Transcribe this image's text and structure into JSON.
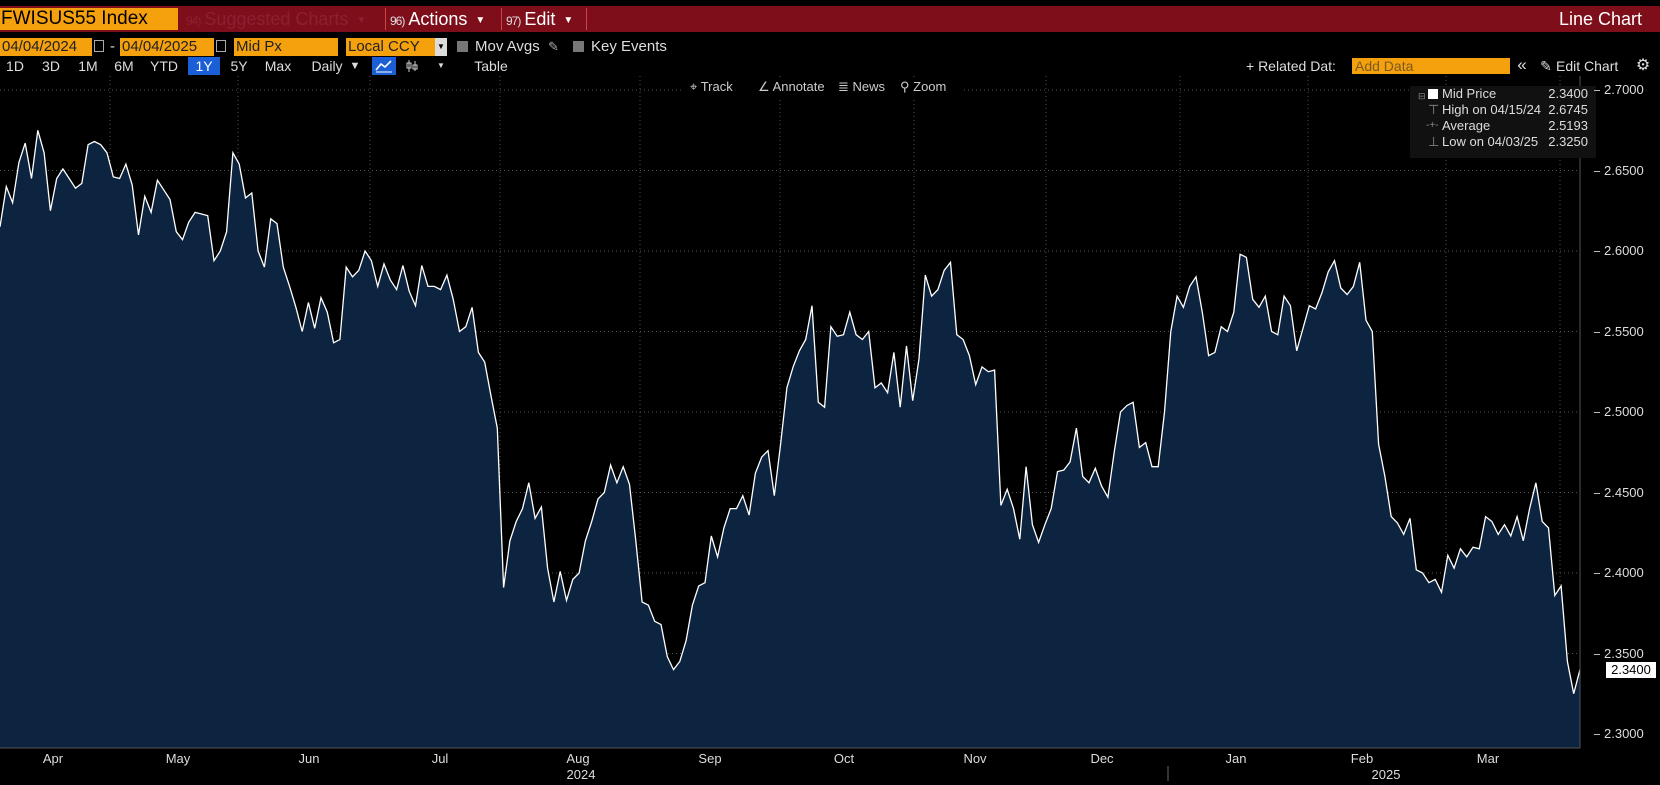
{
  "header": {
    "ticker": "FWISUS55 Index",
    "menus": [
      {
        "num": "94)",
        "label": "Suggested Charts"
      },
      {
        "num": "96)",
        "label": "Actions"
      },
      {
        "num": "97)",
        "label": "Edit"
      }
    ],
    "chart_kind": "Line Chart"
  },
  "controls": {
    "start_date": "04/04/2024",
    "date_sep": "-",
    "end_date": "04/04/2025",
    "field": "Mid Px",
    "currency": "Local CCY",
    "mov_avgs": "Mov Avgs",
    "key_events": "Key Events"
  },
  "toolbar": {
    "ranges": [
      "1D",
      "3D",
      "1M",
      "6M",
      "YTD",
      "1Y",
      "5Y",
      "Max"
    ],
    "active_range": "1Y",
    "frequency": "Daily",
    "table": "Table",
    "related_data": "+ Related Dat:",
    "add_data_placeholder": "Add Data",
    "edit_chart": "Edit Chart",
    "collapse": "«"
  },
  "chart_tools": [
    "Track",
    "Annotate",
    "News",
    "Zoom"
  ],
  "legend": [
    {
      "label": "Mid Price",
      "value": "2.3400"
    },
    {
      "label": "High on 04/15/24",
      "value": "2.6745"
    },
    {
      "label": "Average",
      "value": "2.5193"
    },
    {
      "label": "Low on 04/03/25",
      "value": "2.3250"
    }
  ],
  "last_value_label": "2.3400",
  "colors": {
    "line": "#ffffff",
    "fill": "#0d2440",
    "accent": "#f5a00d",
    "title_bar": "#7e0e1a"
  },
  "chart_data": {
    "type": "area",
    "x_months": [
      "Apr",
      "May",
      "Jun",
      "Jul",
      "Aug",
      "Sep",
      "Oct",
      "Nov",
      "Dec",
      "Jan",
      "Feb",
      "Mar"
    ],
    "x_years": [
      "2024",
      "2025"
    ],
    "ylim": [
      2.29,
      2.705
    ],
    "yticks": [
      "2.3000",
      "2.3500",
      "2.4000",
      "2.4500",
      "2.5000",
      "2.5500",
      "2.6000",
      "2.6500",
      "2.7000"
    ],
    "grid": true,
    "legend_position": "top-right",
    "series": [
      {
        "name": "Mid Price",
        "start": "2024-04-04",
        "end": "2025-04-04",
        "values": [
          2.615,
          2.64,
          2.63,
          2.655,
          2.667,
          2.645,
          2.675,
          2.661,
          2.625,
          2.645,
          2.651,
          2.645,
          2.639,
          2.642,
          2.666,
          2.668,
          2.666,
          2.661,
          2.646,
          2.645,
          2.654,
          2.641,
          2.61,
          2.634,
          2.624,
          2.644,
          2.638,
          2.632,
          2.612,
          2.607,
          2.618,
          2.624,
          2.623,
          2.622,
          2.594,
          2.6,
          2.612,
          2.661,
          2.654,
          2.633,
          2.636,
          2.6,
          2.59,
          2.62,
          2.617,
          2.59,
          2.578,
          2.565,
          2.55,
          2.568,
          2.552,
          2.571,
          2.562,
          2.543,
          2.545,
          2.59,
          2.584,
          2.588,
          2.6,
          2.594,
          2.578,
          2.592,
          2.582,
          2.576,
          2.591,
          2.575,
          2.566,
          2.591,
          2.578,
          2.578,
          2.576,
          2.585,
          2.57,
          2.55,
          2.553,
          2.565,
          2.537,
          2.531,
          2.51,
          2.49,
          2.391,
          2.42,
          2.432,
          2.44,
          2.456,
          2.434,
          2.441,
          2.403,
          2.382,
          2.401,
          2.383,
          2.396,
          2.4,
          2.42,
          2.432,
          2.446,
          2.45,
          2.467,
          2.456,
          2.466,
          2.455,
          2.42,
          2.382,
          2.38,
          2.37,
          2.368,
          2.348,
          2.34,
          2.345,
          2.358,
          2.38,
          2.392,
          2.394,
          2.423,
          2.41,
          2.428,
          2.44,
          2.44,
          2.448,
          2.436,
          2.462,
          2.472,
          2.476,
          2.448,
          2.48,
          2.515,
          2.528,
          2.538,
          2.545,
          2.566,
          2.506,
          2.503,
          2.553,
          2.547,
          2.548,
          2.562,
          2.548,
          2.545,
          2.55,
          2.515,
          2.518,
          2.512,
          2.537,
          2.503,
          2.541,
          2.507,
          2.533,
          2.585,
          2.572,
          2.576,
          2.588,
          2.593,
          2.548,
          2.545,
          2.535,
          2.517,
          2.528,
          2.525,
          2.526,
          2.442,
          2.452,
          2.44,
          2.421,
          2.466,
          2.43,
          2.419,
          2.43,
          2.44,
          2.463,
          2.464,
          2.469,
          2.49,
          2.46,
          2.456,
          2.465,
          2.454,
          2.447,
          2.475,
          2.5,
          2.504,
          2.506,
          2.478,
          2.481,
          2.466,
          2.466,
          2.5,
          2.55,
          2.572,
          2.565,
          2.578,
          2.584,
          2.562,
          2.535,
          2.537,
          2.553,
          2.55,
          2.562,
          2.598,
          2.596,
          2.57,
          2.565,
          2.572,
          2.55,
          2.548,
          2.572,
          2.566,
          2.538,
          2.552,
          2.566,
          2.564,
          2.574,
          2.587,
          2.594,
          2.577,
          2.573,
          2.578,
          2.593,
          2.557,
          2.55,
          2.48,
          2.46,
          2.435,
          2.431,
          2.424,
          2.434,
          2.402,
          2.4,
          2.394,
          2.396,
          2.388,
          2.411,
          2.403,
          2.415,
          2.41,
          2.416,
          2.415,
          2.435,
          2.432,
          2.424,
          2.43,
          2.423,
          2.435,
          2.42,
          2.44,
          2.456,
          2.432,
          2.428,
          2.386,
          2.392,
          2.345,
          2.325,
          2.34
        ]
      }
    ]
  }
}
